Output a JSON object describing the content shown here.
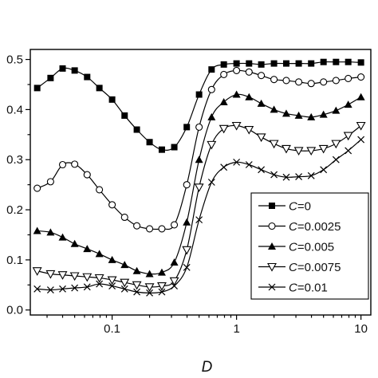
{
  "chart_data": {
    "type": "line",
    "title": "",
    "xlabel": "D",
    "ylabel": "",
    "xscale": "log",
    "xlim": [
      0.022,
      12
    ],
    "ylim": [
      -0.01,
      0.52
    ],
    "grid": false,
    "legend_position": "lower-right",
    "xticks": [
      {
        "value": 0.1,
        "label": "0.1"
      },
      {
        "value": 1,
        "label": "1"
      },
      {
        "value": 10,
        "label": "10"
      }
    ],
    "yticks": [
      {
        "value": 0.0,
        "label": "0.0"
      },
      {
        "value": 0.1,
        "label": "0.1"
      },
      {
        "value": 0.2,
        "label": "0.2"
      },
      {
        "value": 0.3,
        "label": "0.3"
      },
      {
        "value": 0.4,
        "label": "0.4"
      },
      {
        "value": 0.5,
        "label": "0.5"
      }
    ],
    "series": [
      {
        "name": "C=0",
        "legend_prefix": "C",
        "legend_suffix": "=0",
        "marker": "filled-square",
        "color": "#000000",
        "x": [
          0.025,
          0.032,
          0.04,
          0.05,
          0.063,
          0.079,
          0.1,
          0.126,
          0.158,
          0.2,
          0.251,
          0.316,
          0.398,
          0.5,
          0.63,
          0.79,
          1.0,
          1.26,
          1.58,
          2.0,
          2.51,
          3.16,
          3.98,
          5.0,
          6.3,
          7.9,
          10.0
        ],
        "y": [
          0.443,
          0.463,
          0.482,
          0.478,
          0.465,
          0.443,
          0.42,
          0.388,
          0.36,
          0.335,
          0.32,
          0.325,
          0.365,
          0.43,
          0.48,
          0.49,
          0.492,
          0.492,
          0.49,
          0.492,
          0.492,
          0.492,
          0.492,
          0.495,
          0.495,
          0.495,
          0.494
        ]
      },
      {
        "name": "C=0.0025",
        "legend_prefix": "C",
        "legend_suffix": "=0.0025",
        "marker": "open-circle",
        "color": "#000000",
        "x": [
          0.025,
          0.032,
          0.04,
          0.05,
          0.063,
          0.079,
          0.1,
          0.126,
          0.158,
          0.2,
          0.251,
          0.316,
          0.398,
          0.5,
          0.63,
          0.79,
          1.0,
          1.26,
          1.58,
          2.0,
          2.51,
          3.16,
          3.98,
          5.0,
          6.3,
          7.9,
          10.0
        ],
        "y": [
          0.243,
          0.256,
          0.29,
          0.291,
          0.27,
          0.24,
          0.21,
          0.185,
          0.168,
          0.162,
          0.162,
          0.17,
          0.25,
          0.365,
          0.44,
          0.47,
          0.478,
          0.475,
          0.468,
          0.46,
          0.458,
          0.455,
          0.452,
          0.455,
          0.458,
          0.462,
          0.465
        ]
      },
      {
        "name": "C=0.005",
        "legend_prefix": "C",
        "legend_suffix": "=0.005",
        "marker": "filled-triangle-up",
        "color": "#000000",
        "x": [
          0.025,
          0.032,
          0.04,
          0.05,
          0.063,
          0.079,
          0.1,
          0.126,
          0.158,
          0.2,
          0.251,
          0.316,
          0.398,
          0.5,
          0.63,
          0.79,
          1.0,
          1.26,
          1.58,
          2.0,
          2.51,
          3.16,
          3.98,
          5.0,
          6.3,
          7.9,
          10.0
        ],
        "y": [
          0.158,
          0.155,
          0.145,
          0.132,
          0.122,
          0.112,
          0.1,
          0.09,
          0.078,
          0.072,
          0.075,
          0.095,
          0.175,
          0.3,
          0.385,
          0.415,
          0.43,
          0.425,
          0.412,
          0.4,
          0.392,
          0.388,
          0.385,
          0.39,
          0.398,
          0.41,
          0.425
        ]
      },
      {
        "name": "C=0.0075",
        "legend_prefix": "C",
        "legend_suffix": "=0.0075",
        "marker": "open-triangle-down",
        "color": "#000000",
        "x": [
          0.025,
          0.032,
          0.04,
          0.05,
          0.063,
          0.079,
          0.1,
          0.126,
          0.158,
          0.2,
          0.251,
          0.316,
          0.398,
          0.5,
          0.63,
          0.79,
          1.0,
          1.26,
          1.58,
          2.0,
          2.51,
          3.16,
          3.98,
          5.0,
          6.3,
          7.9,
          10.0
        ],
        "y": [
          0.078,
          0.072,
          0.07,
          0.068,
          0.066,
          0.064,
          0.06,
          0.055,
          0.05,
          0.046,
          0.048,
          0.058,
          0.12,
          0.245,
          0.33,
          0.362,
          0.368,
          0.36,
          0.345,
          0.332,
          0.322,
          0.318,
          0.318,
          0.322,
          0.332,
          0.348,
          0.368
        ]
      },
      {
        "name": "C=0.01",
        "legend_prefix": "C",
        "legend_suffix": "=0.01",
        "marker": "cross",
        "color": "#000000",
        "x": [
          0.025,
          0.032,
          0.04,
          0.05,
          0.063,
          0.079,
          0.1,
          0.126,
          0.158,
          0.2,
          0.251,
          0.316,
          0.398,
          0.5,
          0.63,
          0.79,
          1.0,
          1.26,
          1.58,
          2.0,
          2.51,
          3.16,
          3.98,
          5.0,
          6.3,
          7.9,
          10.0
        ],
        "y": [
          0.042,
          0.04,
          0.042,
          0.044,
          0.046,
          0.052,
          0.048,
          0.042,
          0.036,
          0.034,
          0.036,
          0.048,
          0.085,
          0.18,
          0.255,
          0.285,
          0.295,
          0.29,
          0.28,
          0.27,
          0.265,
          0.266,
          0.268,
          0.28,
          0.3,
          0.318,
          0.34
        ]
      }
    ]
  }
}
